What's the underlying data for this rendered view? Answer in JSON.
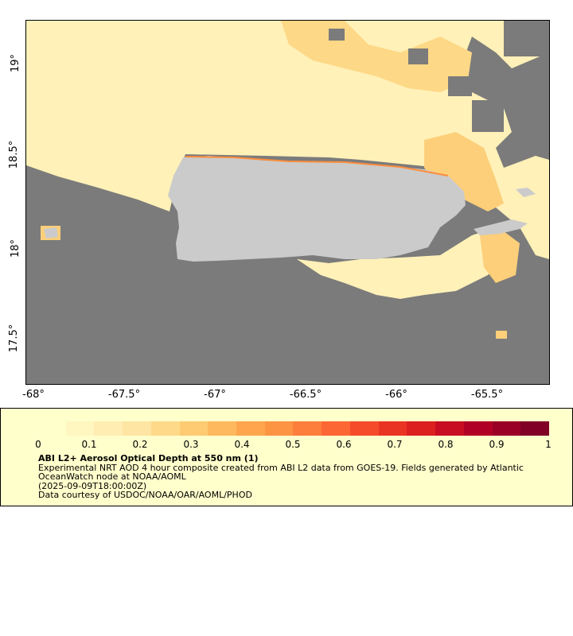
{
  "map": {
    "y_axis_labels": [
      "19°",
      "18.5°",
      "18°",
      "17.5°"
    ],
    "x_axis_labels": [
      "-68°",
      "-67.5°",
      "-67°",
      "-66.5°",
      "-66°",
      "-65.5°"
    ],
    "colors": {
      "ocean_no_data": "#7b7b7b",
      "land": "#cbcbcb",
      "low_aod": "#fff1b8",
      "mid_aod": "#fdcf7a",
      "high_aod": "#fc8d3c"
    }
  },
  "legend": {
    "ticks": [
      "0",
      "0.1",
      "0.2",
      "0.3",
      "0.4",
      "0.5",
      "0.6",
      "0.7",
      "0.8",
      "0.9",
      "1"
    ],
    "colors": [
      "#ffffcc",
      "#fff6c0",
      "#ffedb2",
      "#fee5a3",
      "#fed98a",
      "#fecb72",
      "#feb95e",
      "#fea54e",
      "#fd9443",
      "#fd7e3b",
      "#fc6634",
      "#f54b2b",
      "#ea3423",
      "#dc1f1f",
      "#c80d22",
      "#b10026",
      "#9a0026",
      "#800026"
    ],
    "title": "ABI L2+ Aerosol Optical Depth at 550 nm (1)",
    "line1": "Experimental NRT AOD 4 hour composite created from ABI L2 data from GOES-19. Fields generated by Atlantic OceanWatch node at NOAA/AOML",
    "line2": "(2025-09-09T18:00:00Z)",
    "line3": "Data courtesy of USDOC/NOAA/OAR/AOML/PHOD"
  }
}
